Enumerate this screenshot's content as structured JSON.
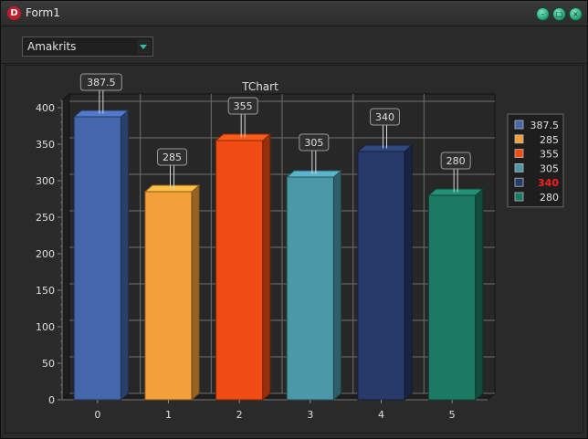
{
  "window": {
    "title": "Form1"
  },
  "toolbar": {
    "combo_value": "Amakrits"
  },
  "colors": {
    "background": "#2a2a2a",
    "plot_background": "#272727",
    "grid": "#6f6f6f",
    "text": "#e0e0e0",
    "legend_highlight": "#ff1f1f"
  },
  "chart_data": {
    "type": "bar",
    "title": "TChart",
    "xlabel": "",
    "ylabel": "",
    "categories": [
      "0",
      "1",
      "2",
      "3",
      "4",
      "5"
    ],
    "values": [
      387.5,
      285,
      355,
      305,
      340,
      280
    ],
    "value_labels": [
      "387.5",
      "285",
      "355",
      "305",
      "340",
      "280"
    ],
    "bar_colors": [
      "#4466aa",
      "#f3a03a",
      "#f04c14",
      "#4a98a8",
      "#283a6a",
      "#1c7a62"
    ],
    "ylim": [
      0,
      410
    ],
    "yticks": [
      0,
      50,
      100,
      150,
      200,
      250,
      300,
      350,
      400
    ],
    "grid": true,
    "three_d": true,
    "legend": {
      "placement": "right",
      "entries": [
        "387.5",
        "285",
        "355",
        "305",
        "340",
        "280"
      ],
      "highlight_index": 4
    }
  }
}
